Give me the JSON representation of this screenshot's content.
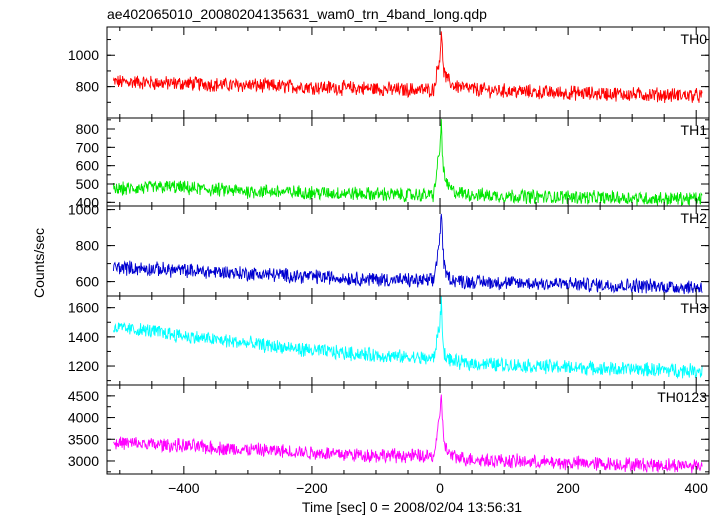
{
  "chart_data": {
    "type": "line",
    "title": "ae402065010_20080204135631_wam0_trn_4band_long.qdp",
    "xlabel": "Time [sec] 0 = 2008/02/04 13:56:31",
    "ylabel": "Counts/sec",
    "xlim": [
      -520,
      420
    ],
    "xticks": [
      -400,
      -200,
      0,
      200,
      400
    ],
    "xtick_labels": [
      "−400",
      "−200",
      "0",
      "200",
      "400"
    ],
    "grid": false,
    "panels": [
      {
        "name": "TH0",
        "color": "#ff0000",
        "ylim": [
          600,
          1180
        ],
        "yticks": [
          800,
          1000
        ],
        "series": {
          "x": [
            -510,
            -480,
            -450,
            -420,
            -390,
            -360,
            -330,
            -300,
            -270,
            -240,
            -210,
            -180,
            -150,
            -120,
            -90,
            -60,
            -30,
            -10,
            0,
            2,
            4,
            6,
            10,
            20,
            40,
            60,
            90,
            120,
            150,
            180,
            210,
            240,
            270,
            300,
            330,
            360,
            390,
            410
          ],
          "y": [
            830,
            830,
            825,
            820,
            820,
            815,
            810,
            810,
            805,
            800,
            800,
            795,
            790,
            790,
            785,
            780,
            780,
            780,
            1000,
            1150,
            1000,
            900,
            850,
            810,
            790,
            780,
            775,
            770,
            765,
            760,
            760,
            755,
            755,
            750,
            750,
            745,
            745,
            740
          ]
        }
      },
      {
        "name": "TH1",
        "color": "#00e600",
        "ylim": [
          380,
          860
        ],
        "yticks": [
          400,
          500,
          600,
          700,
          800
        ],
        "series": {
          "x": [
            -510,
            -480,
            -450,
            -420,
            -390,
            -360,
            -330,
            -300,
            -270,
            -240,
            -210,
            -180,
            -150,
            -120,
            -90,
            -60,
            -30,
            -10,
            0,
            2,
            4,
            6,
            10,
            20,
            40,
            60,
            90,
            120,
            150,
            180,
            210,
            240,
            270,
            300,
            330,
            360,
            390,
            410
          ],
          "y": [
            470,
            475,
            480,
            485,
            475,
            470,
            465,
            460,
            460,
            455,
            455,
            450,
            450,
            445,
            445,
            440,
            440,
            440,
            700,
            840,
            650,
            560,
            500,
            460,
            445,
            440,
            435,
            435,
            430,
            430,
            430,
            425,
            425,
            425,
            420,
            420,
            420,
            420
          ]
        }
      },
      {
        "name": "TH2",
        "color": "#0000d0",
        "ylim": [
          520,
          1020
        ],
        "yticks": [
          600,
          800,
          1000
        ],
        "series": {
          "x": [
            -510,
            -480,
            -450,
            -420,
            -390,
            -360,
            -330,
            -300,
            -270,
            -240,
            -210,
            -180,
            -150,
            -120,
            -90,
            -60,
            -30,
            -10,
            0,
            2,
            4,
            6,
            10,
            20,
            40,
            60,
            90,
            120,
            150,
            180,
            210,
            240,
            270,
            300,
            330,
            360,
            390,
            410
          ],
          "y": [
            680,
            675,
            670,
            665,
            660,
            655,
            650,
            645,
            640,
            635,
            630,
            625,
            620,
            615,
            612,
            608,
            605,
            603,
            850,
            1000,
            820,
            700,
            640,
            610,
            600,
            598,
            595,
            592,
            590,
            588,
            585,
            582,
            580,
            578,
            575,
            572,
            570,
            568
          ]
        }
      },
      {
        "name": "TH3",
        "color": "#00ffff",
        "ylim": [
          1070,
          1680
        ],
        "yticks": [
          1200,
          1400,
          1600
        ],
        "series": {
          "x": [
            -510,
            -480,
            -450,
            -420,
            -390,
            -360,
            -330,
            -300,
            -270,
            -240,
            -210,
            -180,
            -150,
            -120,
            -90,
            -60,
            -30,
            -10,
            0,
            2,
            4,
            6,
            10,
            20,
            40,
            60,
            90,
            120,
            150,
            180,
            210,
            240,
            270,
            300,
            330,
            360,
            390,
            410
          ],
          "y": [
            1460,
            1450,
            1440,
            1420,
            1400,
            1385,
            1370,
            1355,
            1340,
            1325,
            1310,
            1300,
            1290,
            1280,
            1270,
            1262,
            1255,
            1250,
            1500,
            1660,
            1400,
            1300,
            1260,
            1230,
            1220,
            1215,
            1210,
            1205,
            1200,
            1195,
            1190,
            1185,
            1180,
            1178,
            1175,
            1172,
            1170,
            1168
          ]
        }
      },
      {
        "name": "TH0123",
        "color": "#ff00ff",
        "ylim": [
          2700,
          4750
        ],
        "yticks": [
          3000,
          3500,
          4000,
          4500
        ],
        "series": {
          "x": [
            -510,
            -480,
            -450,
            -420,
            -390,
            -360,
            -330,
            -300,
            -270,
            -240,
            -210,
            -180,
            -150,
            -120,
            -90,
            -60,
            -30,
            -10,
            0,
            2,
            4,
            6,
            10,
            20,
            40,
            60,
            90,
            120,
            150,
            180,
            210,
            240,
            270,
            300,
            330,
            360,
            390,
            410
          ],
          "y": [
            3420,
            3400,
            3380,
            3360,
            3340,
            3310,
            3280,
            3260,
            3240,
            3220,
            3200,
            3180,
            3160,
            3140,
            3130,
            3120,
            3110,
            3100,
            4000,
            4600,
            3900,
            3500,
            3250,
            3100,
            3050,
            3030,
            3010,
            2990,
            2970,
            2960,
            2950,
            2940,
            2930,
            2920,
            2910,
            2900,
            2900,
            2900
          ]
        }
      }
    ]
  }
}
